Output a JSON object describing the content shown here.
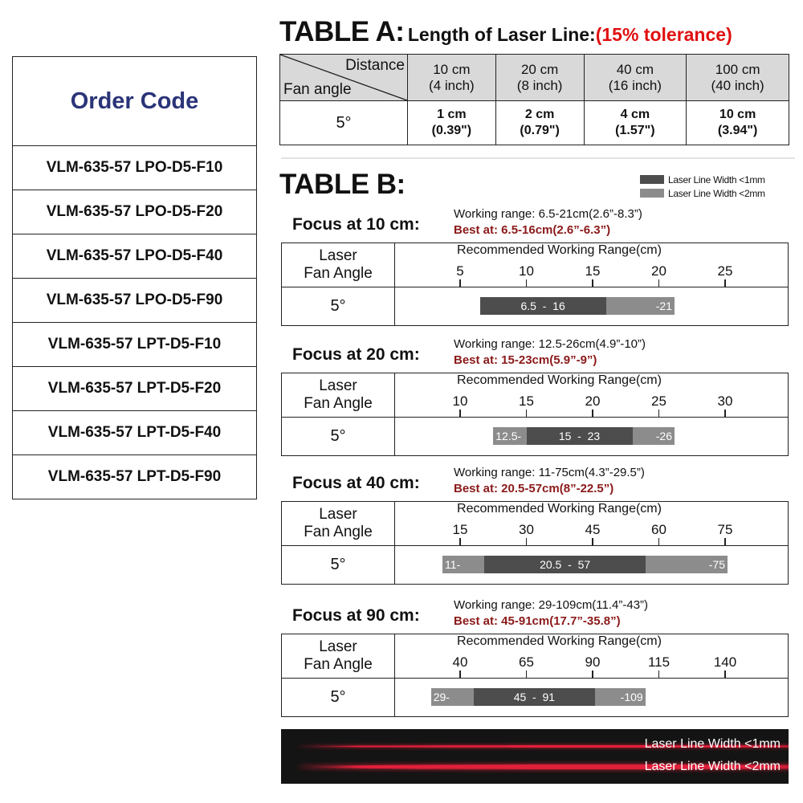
{
  "order_code": {
    "title": "Order Code",
    "items": [
      "VLM-635-57 LPO-D5-F10",
      "VLM-635-57 LPO-D5-F20",
      "VLM-635-57 LPO-D5-F40",
      "VLM-635-57 LPO-D5-F90",
      "VLM-635-57 LPT-D5-F10",
      "VLM-635-57 LPT-D5-F20",
      "VLM-635-57 LPT-D5-F40",
      "VLM-635-57 LPT-D5-F90"
    ]
  },
  "table_a": {
    "label": "TABLE A:",
    "subtitle": "Length of Laser Line:",
    "tolerance": "(15% tolerance)",
    "corner_top": "Distance",
    "corner_bottom": "Fan angle",
    "columns": [
      [
        "10 cm",
        "(4 inch)"
      ],
      [
        "20 cm",
        "(8 inch)"
      ],
      [
        "40 cm",
        "(16 inch)"
      ],
      [
        "100 cm",
        "(40 inch)"
      ]
    ],
    "row_label": "5°",
    "values": [
      [
        "1 cm",
        "(0.39\")"
      ],
      [
        "2 cm",
        "(0.79\")"
      ],
      [
        "4 cm",
        "(1.57\")"
      ],
      [
        "10 cm",
        "(3.94\")"
      ]
    ]
  },
  "table_b": {
    "label": "TABLE B:",
    "legend": [
      {
        "label": "Laser Line Width <1mm",
        "color": "#4d4d4d"
      },
      {
        "label": "Laser Line Width <2mm",
        "color": "#8c8c8c"
      }
    ],
    "col_label_1": "Laser",
    "col_label_2": "Fan Angle",
    "axis_title": "Recommended Working Range(cm)",
    "blocks": [
      {
        "title": "Focus at 10 cm:",
        "working": "Working range: 6.5-21cm(2.6”-8.3”)",
        "best": "Best at: 6.5-16cm(2.6”-6.3”)",
        "angle": "5°",
        "ticks": [
          5,
          10,
          15,
          20,
          25
        ],
        "best_range": [
          6.5,
          16
        ],
        "work_range": [
          6.5,
          21
        ],
        "left_label": "",
        "best_label": "6.5  -  16",
        "right_label": "-21"
      },
      {
        "title": "Focus at 20 cm:",
        "working": "Working range: 12.5-26cm(4.9”-10”)",
        "best": "Best at: 15-23cm(5.9”-9”)",
        "angle": "5°",
        "ticks": [
          10,
          15,
          20,
          25,
          30
        ],
        "best_range": [
          15,
          23
        ],
        "work_range": [
          12.5,
          26
        ],
        "left_label": "12.5-",
        "best_label": "15  -  23",
        "right_label": "-26"
      },
      {
        "title": "Focus at 40 cm:",
        "working": "Working range: 11-75cm(4.3”-29.5”)",
        "best": "Best at: 20.5-57cm(8”-22.5”)",
        "angle": "5°",
        "ticks": [
          15,
          30,
          45,
          60,
          75
        ],
        "best_range": [
          20.5,
          57
        ],
        "work_range": [
          11,
          75
        ],
        "left_label": "11-",
        "best_label": "20.5  -  57",
        "right_label": "-75"
      },
      {
        "title": "Focus at 90 cm:",
        "working": "Working range: 29-109cm(11.4”-43”)",
        "best": "Best at: 45-91cm(17.7”-35.8”)",
        "angle": "5°",
        "ticks": [
          40,
          65,
          90,
          115,
          140
        ],
        "best_range": [
          45,
          91
        ],
        "work_range": [
          29,
          109
        ],
        "left_label": "29-",
        "best_label": "45  -  91",
        "right_label": "-109"
      }
    ]
  },
  "laser_photo": {
    "line1": "Laser Line Width <1mm",
    "line2": "Laser Line Width <2mm",
    "laser_color": "#e0203a"
  }
}
